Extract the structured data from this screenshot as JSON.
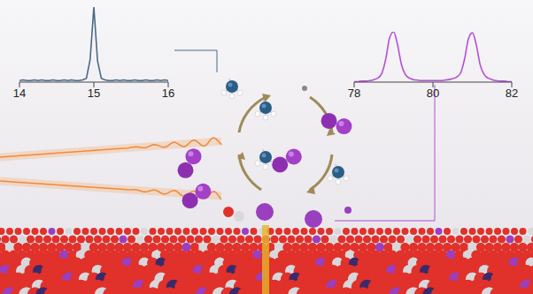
{
  "chart_data": [
    {
      "type": "line",
      "x": [
        14.0,
        14.05,
        14.1,
        14.15,
        14.2,
        14.25,
        14.3,
        14.35,
        14.4,
        14.45,
        14.5,
        14.55,
        14.6,
        14.65,
        14.7,
        14.75,
        14.8,
        14.85,
        14.9,
        14.95,
        15.0,
        15.05,
        15.1,
        15.15,
        15.2,
        15.25,
        15.3,
        15.35,
        15.4,
        15.45,
        15.5,
        15.55,
        15.6,
        15.65,
        15.7,
        15.75,
        15.8,
        15.85,
        15.9,
        15.95,
        16.0
      ],
      "values": [
        0.02,
        0.03,
        0.02,
        0.02,
        0.03,
        0.02,
        0.03,
        0.02,
        0.02,
        0.03,
        0.02,
        0.02,
        0.03,
        0.02,
        0.03,
        0.02,
        0.02,
        0.03,
        0.05,
        0.3,
        1.0,
        0.28,
        0.05,
        0.03,
        0.02,
        0.02,
        0.03,
        0.02,
        0.03,
        0.02,
        0.02,
        0.03,
        0.02,
        0.02,
        0.03,
        0.02,
        0.02,
        0.03,
        0.02,
        0.03,
        0.02
      ],
      "color": "#4a6a88",
      "xlim": [
        14,
        16
      ],
      "xticks": [
        14,
        15,
        16
      ],
      "ylim": [
        0,
        1
      ],
      "tick_labels": "x"
    },
    {
      "type": "line",
      "x": [
        78.0,
        78.1,
        78.2,
        78.3,
        78.4,
        78.5,
        78.6,
        78.7,
        78.8,
        78.9,
        79.0,
        79.1,
        79.2,
        79.3,
        79.4,
        79.5,
        79.6,
        79.7,
        79.8,
        79.9,
        80.0,
        80.1,
        80.2,
        80.3,
        80.4,
        80.5,
        80.6,
        80.7,
        80.8,
        80.9,
        81.0,
        81.1,
        81.2,
        81.3,
        81.4,
        81.5,
        81.6,
        81.7,
        81.8,
        81.9,
        82.0
      ],
      "values": [
        0.01,
        0.01,
        0.02,
        0.02,
        0.03,
        0.05,
        0.08,
        0.17,
        0.45,
        0.88,
        1.0,
        0.75,
        0.35,
        0.15,
        0.08,
        0.05,
        0.04,
        0.03,
        0.03,
        0.03,
        0.03,
        0.03,
        0.03,
        0.04,
        0.05,
        0.07,
        0.1,
        0.18,
        0.45,
        0.86,
        0.98,
        0.74,
        0.34,
        0.15,
        0.08,
        0.05,
        0.03,
        0.02,
        0.02,
        0.01,
        0.01
      ],
      "color": "#b44fd6",
      "xlim": [
        78,
        82
      ],
      "xticks": [
        78,
        80,
        82
      ],
      "ylim": [
        0,
        1
      ],
      "tick_labels": "x"
    }
  ]
}
